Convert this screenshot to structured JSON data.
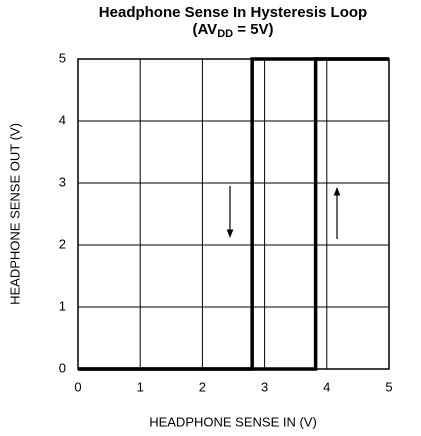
{
  "chart_data": {
    "type": "line",
    "title": "Headphone Sense In Hysteresis Loop",
    "subtitle": [
      "(AV",
      "DD",
      " = 5V)"
    ],
    "x_label": "HEADPHONE SENSE IN (V)",
    "y_label": "HEADPHONE SENSE OUT (V)",
    "xlim": [
      0,
      5
    ],
    "ylim": [
      0,
      5
    ],
    "xticks": [
      0,
      1,
      2,
      3,
      4,
      5
    ],
    "yticks": [
      0,
      1,
      2,
      3,
      4,
      5
    ],
    "grid": true,
    "series": [
      {
        "color": "#000000",
        "x": [
          0,
          3.82,
          3.82,
          5
        ],
        "values": [
          0,
          0,
          5,
          5
        ]
      },
      {
        "color": "#000000",
        "x": [
          5,
          2.8,
          2.8,
          0
        ],
        "values": [
          5,
          5,
          0,
          0
        ]
      }
    ]
  }
}
